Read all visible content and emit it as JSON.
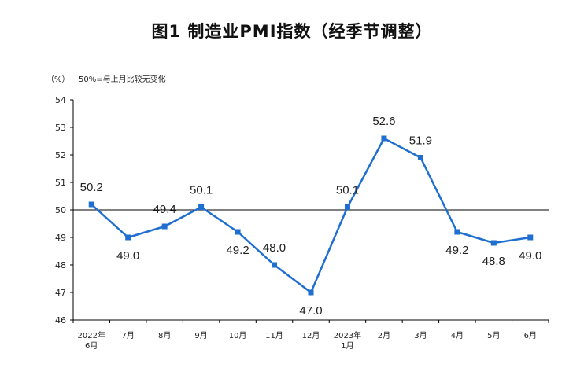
{
  "page": {
    "title": "图1  制造业PMI指数（经季节调整）"
  },
  "chart_data": {
    "type": "line",
    "title": "图1  制造业PMI指数（经季节调整）",
    "ylabel": "（%）",
    "annotation": "50%=与上月比较无变化",
    "categories": [
      [
        "2022年",
        "6月"
      ],
      [
        "7月"
      ],
      [
        "8月"
      ],
      [
        "9月"
      ],
      [
        "10月"
      ],
      [
        "11月"
      ],
      [
        "12月"
      ],
      [
        "2023年",
        "1月"
      ],
      [
        "2月"
      ],
      [
        "3月"
      ],
      [
        "4月"
      ],
      [
        "5月"
      ],
      [
        "6月"
      ]
    ],
    "series": [
      {
        "values": [
          50.2,
          49.0,
          49.4,
          50.1,
          49.2,
          48.0,
          47.0,
          50.1,
          52.6,
          51.9,
          49.2,
          48.8,
          49.0
        ]
      }
    ],
    "data_labels": [
      "50.2",
      "49.0",
      "49.4",
      "50.1",
      "49.2",
      "48.0",
      "47.0",
      "50.1",
      "52.6",
      "51.9",
      "49.2",
      "48.8",
      "49.0"
    ],
    "ylim": [
      46,
      54
    ],
    "yticks": [
      "46",
      "47",
      "48",
      "49",
      "50",
      "51",
      "52",
      "53",
      "54"
    ],
    "reference_line": 50,
    "colors": {
      "line": "#1f6fd1",
      "marker": "#1f6fd1",
      "axis": "#000000"
    },
    "grid": false,
    "legend": "none"
  }
}
